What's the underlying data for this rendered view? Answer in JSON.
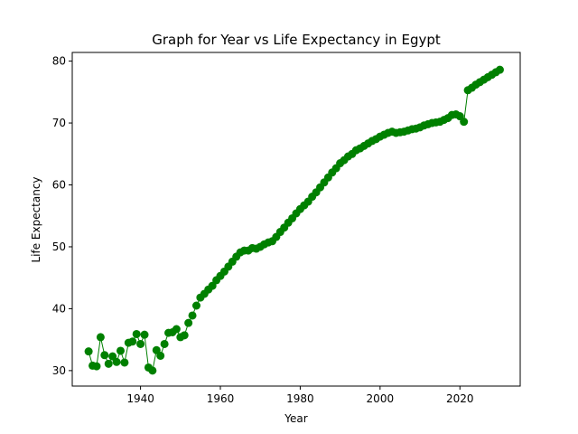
{
  "chart_data": {
    "type": "line",
    "title": "Graph for Year vs Life Expectancy in Egypt",
    "xlabel": "Year",
    "ylabel": "Life Expectancy",
    "xlim": [
      1922.9,
      2035.1
    ],
    "ylim": [
      27.5,
      81.4
    ],
    "xticks": [
      1940,
      1960,
      1980,
      2000,
      2020
    ],
    "yticks": [
      30,
      40,
      50,
      60,
      70,
      80
    ],
    "grid": false,
    "marker": "circle",
    "color": "#008000",
    "series": [
      {
        "x": [
          1927,
          1928,
          1929,
          1930,
          1931,
          1932,
          1933,
          1934,
          1935,
          1936,
          1937,
          1938,
          1939,
          1940,
          1941,
          1942,
          1943,
          1944,
          1945,
          1946,
          1947,
          1948,
          1949,
          1950,
          1951,
          1952,
          1953,
          1954,
          1955,
          1956,
          1957,
          1958,
          1959,
          1960,
          1961,
          1962,
          1963,
          1964,
          1965,
          1966,
          1967,
          1968,
          1969,
          1970,
          1971,
          1972,
          1973,
          1974,
          1975,
          1976,
          1977,
          1978,
          1979,
          1980,
          1981,
          1982,
          1983,
          1984,
          1985,
          1986,
          1987,
          1988,
          1989,
          1990,
          1991,
          1992,
          1993,
          1994,
          1995,
          1996,
          1997,
          1998,
          1999,
          2000,
          2001,
          2002,
          2003,
          2004,
          2005,
          2006,
          2007,
          2008,
          2009,
          2010,
          2011,
          2012,
          2013,
          2014,
          2015,
          2016,
          2017,
          2018,
          2019,
          2020,
          2021,
          2022,
          2023,
          2024,
          2025,
          2026,
          2027,
          2028,
          2029,
          2030
        ],
        "y": [
          33.1,
          30.8,
          30.7,
          35.4,
          32.5,
          31.1,
          32.3,
          31.4,
          33.2,
          31.3,
          34.5,
          34.7,
          35.9,
          34.3,
          35.8,
          30.5,
          30.0,
          33.3,
          32.4,
          34.3,
          36.1,
          36.2,
          36.7,
          35.4,
          35.7,
          37.7,
          38.9,
          40.5,
          41.8,
          42.4,
          43.1,
          43.7,
          44.6,
          45.3,
          46.0,
          46.8,
          47.6,
          48.4,
          49.1,
          49.4,
          49.4,
          49.8,
          49.7,
          50.0,
          50.4,
          50.7,
          50.9,
          51.6,
          52.4,
          53.1,
          53.9,
          54.6,
          55.4,
          56.1,
          56.7,
          57.3,
          58.1,
          58.8,
          59.6,
          60.4,
          61.2,
          62.0,
          62.7,
          63.5,
          64.0,
          64.6,
          65.0,
          65.6,
          65.9,
          66.3,
          66.7,
          67.1,
          67.4,
          67.8,
          68.1,
          68.4,
          68.6,
          68.4,
          68.5,
          68.6,
          68.8,
          69.0,
          69.1,
          69.3,
          69.6,
          69.8,
          70.0,
          70.1,
          70.2,
          70.5,
          70.8,
          71.3,
          71.4,
          71.1,
          70.2,
          75.3,
          75.7,
          76.2,
          76.6,
          77.0,
          77.4,
          77.8,
          78.2,
          78.6
        ]
      }
    ]
  }
}
